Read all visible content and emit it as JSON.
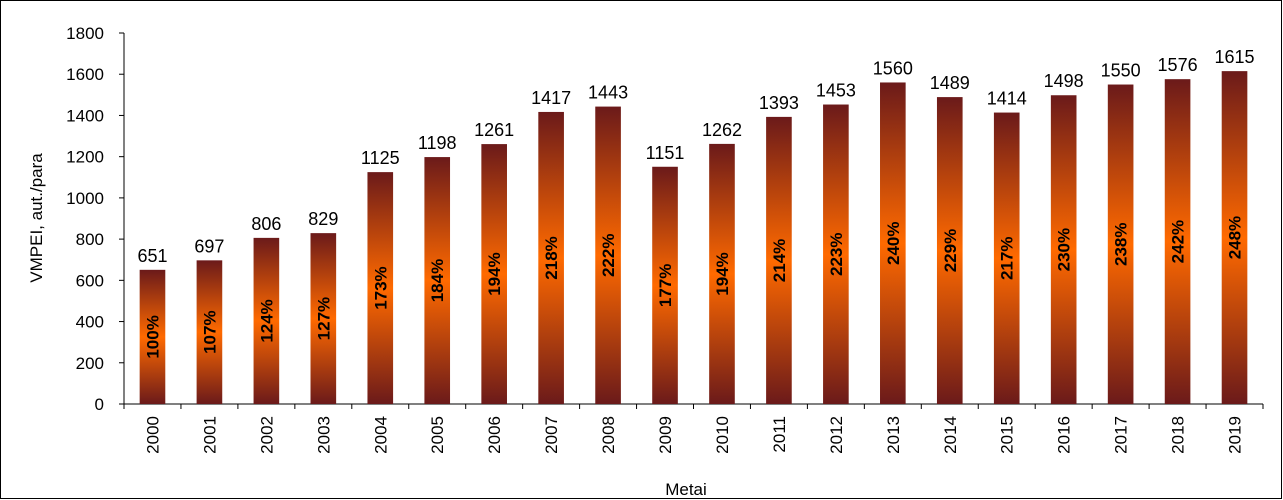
{
  "chart_data": {
    "type": "bar",
    "xlabel": "Metai",
    "ylabel": "VMPEI, aut./para",
    "ylim": [
      0,
      1800
    ],
    "yticks": [
      0,
      200,
      400,
      600,
      800,
      1000,
      1200,
      1400,
      1600,
      1800
    ],
    "grid": false,
    "categories": [
      "2000",
      "2001",
      "2002",
      "2003",
      "2004",
      "2005",
      "2006",
      "2007",
      "2008",
      "2009",
      "2010",
      "2011",
      "2012",
      "2013",
      "2014",
      "2015",
      "2016",
      "2017",
      "2018",
      "2019"
    ],
    "values": [
      651,
      697,
      806,
      829,
      1125,
      1198,
      1261,
      1417,
      1443,
      1151,
      1262,
      1393,
      1453,
      1560,
      1489,
      1414,
      1498,
      1550,
      1576,
      1615
    ],
    "percent_labels": [
      "100%",
      "107%",
      "124%",
      "127%",
      "173%",
      "184%",
      "194%",
      "218%",
      "222%",
      "177%",
      "194%",
      "214%",
      "223%",
      "240%",
      "229%",
      "217%",
      "230%",
      "238%",
      "242%",
      "248%"
    ],
    "colors": {
      "bar_edge": "#6b1a1a",
      "bar_center": "#ff6a00",
      "axis": "#000000"
    }
  }
}
